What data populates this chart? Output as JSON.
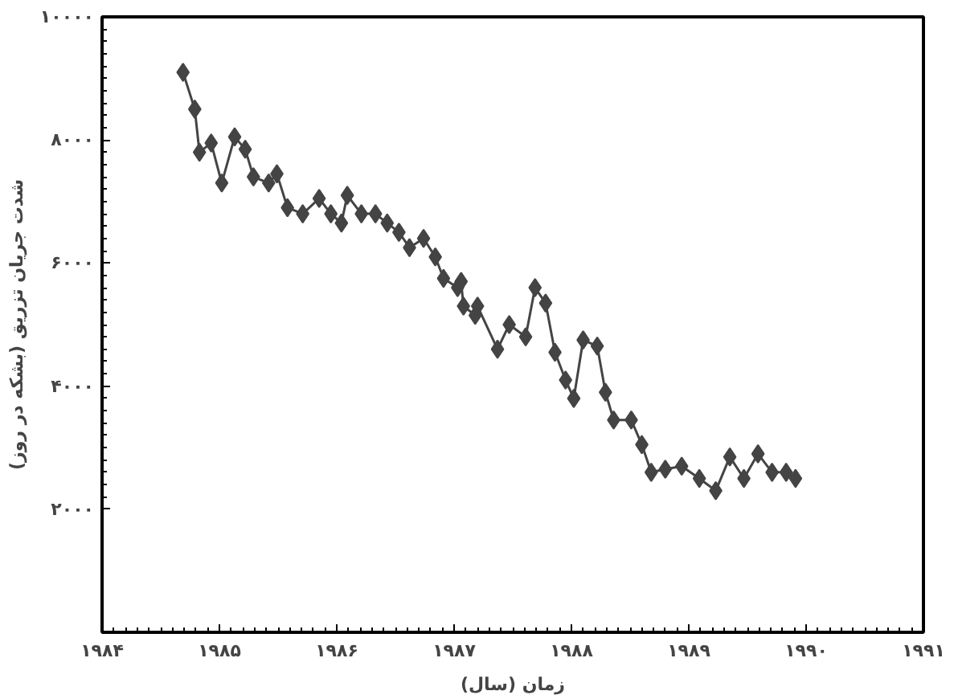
{
  "chart_data": {
    "type": "line",
    "xlabel": "زمان (سال)",
    "ylabel": "شدت جریان تزریق (بشکه در روز)",
    "x": [
      1984.69,
      1984.79,
      1984.83,
      1984.93,
      1985.02,
      1985.13,
      1985.22,
      1985.29,
      1985.42,
      1985.49,
      1985.58,
      1985.71,
      1985.85,
      1985.95,
      1986.04,
      1986.09,
      1986.21,
      1986.33,
      1986.43,
      1986.53,
      1986.62,
      1986.74,
      1986.84,
      1986.91,
      1987.03,
      1987.06,
      1987.08,
      1987.18,
      1987.2,
      1987.37,
      1987.47,
      1987.61,
      1987.69,
      1987.78,
      1987.86,
      1987.95,
      1988.02,
      1988.1,
      1988.22,
      1988.29,
      1988.36,
      1988.51,
      1988.6,
      1988.68,
      1988.8,
      1988.94,
      1989.09,
      1989.23,
      1989.35,
      1989.47,
      1989.59,
      1989.71,
      1989.83,
      1989.91
    ],
    "series": [
      {
        "color": "#444444",
        "values": [
          9100,
          8500,
          7800,
          7950,
          7300,
          8050,
          7850,
          7400,
          7300,
          7450,
          6900,
          6800,
          7050,
          6800,
          6650,
          7100,
          6800,
          6800,
          6650,
          6500,
          6250,
          6400,
          6100,
          5750,
          5600,
          5700,
          5300,
          5150,
          5300,
          4600,
          5000,
          4800,
          5600,
          5350,
          4550,
          4100,
          3800,
          4750,
          4650,
          3900,
          3450,
          3450,
          3050,
          2600,
          2650,
          2700,
          2500,
          2300,
          2850,
          2500,
          2900,
          2600,
          2600,
          2500
        ]
      }
    ],
    "marker": "diamond",
    "line_style": "solid",
    "grid": false,
    "xlim": [
      1984,
      1991
    ],
    "ylim": [
      0,
      10000
    ],
    "xticks": [
      {
        "value": 1984,
        "label": "۱۹۸۴"
      },
      {
        "value": 1985,
        "label": "۱۹۸۵"
      },
      {
        "value": 1986,
        "label": "۱۹۸۶"
      },
      {
        "value": 1987,
        "label": "۱۹۸۷"
      },
      {
        "value": 1988,
        "label": "۱۹۸۸"
      },
      {
        "value": 1989,
        "label": "۱۹۸۹"
      },
      {
        "value": 1990,
        "label": "۱۹۹۰"
      },
      {
        "value": 1991,
        "label": "۱۹۹۱"
      }
    ],
    "yticks": [
      {
        "value": 2000,
        "label": "۲۰۰۰"
      },
      {
        "value": 4000,
        "label": "۴۰۰۰"
      },
      {
        "value": 6000,
        "label": "۶۰۰۰"
      },
      {
        "value": 8000,
        "label": "۸۰۰۰"
      },
      {
        "value": 10000,
        "label": "۱۰۰۰۰"
      }
    ]
  }
}
